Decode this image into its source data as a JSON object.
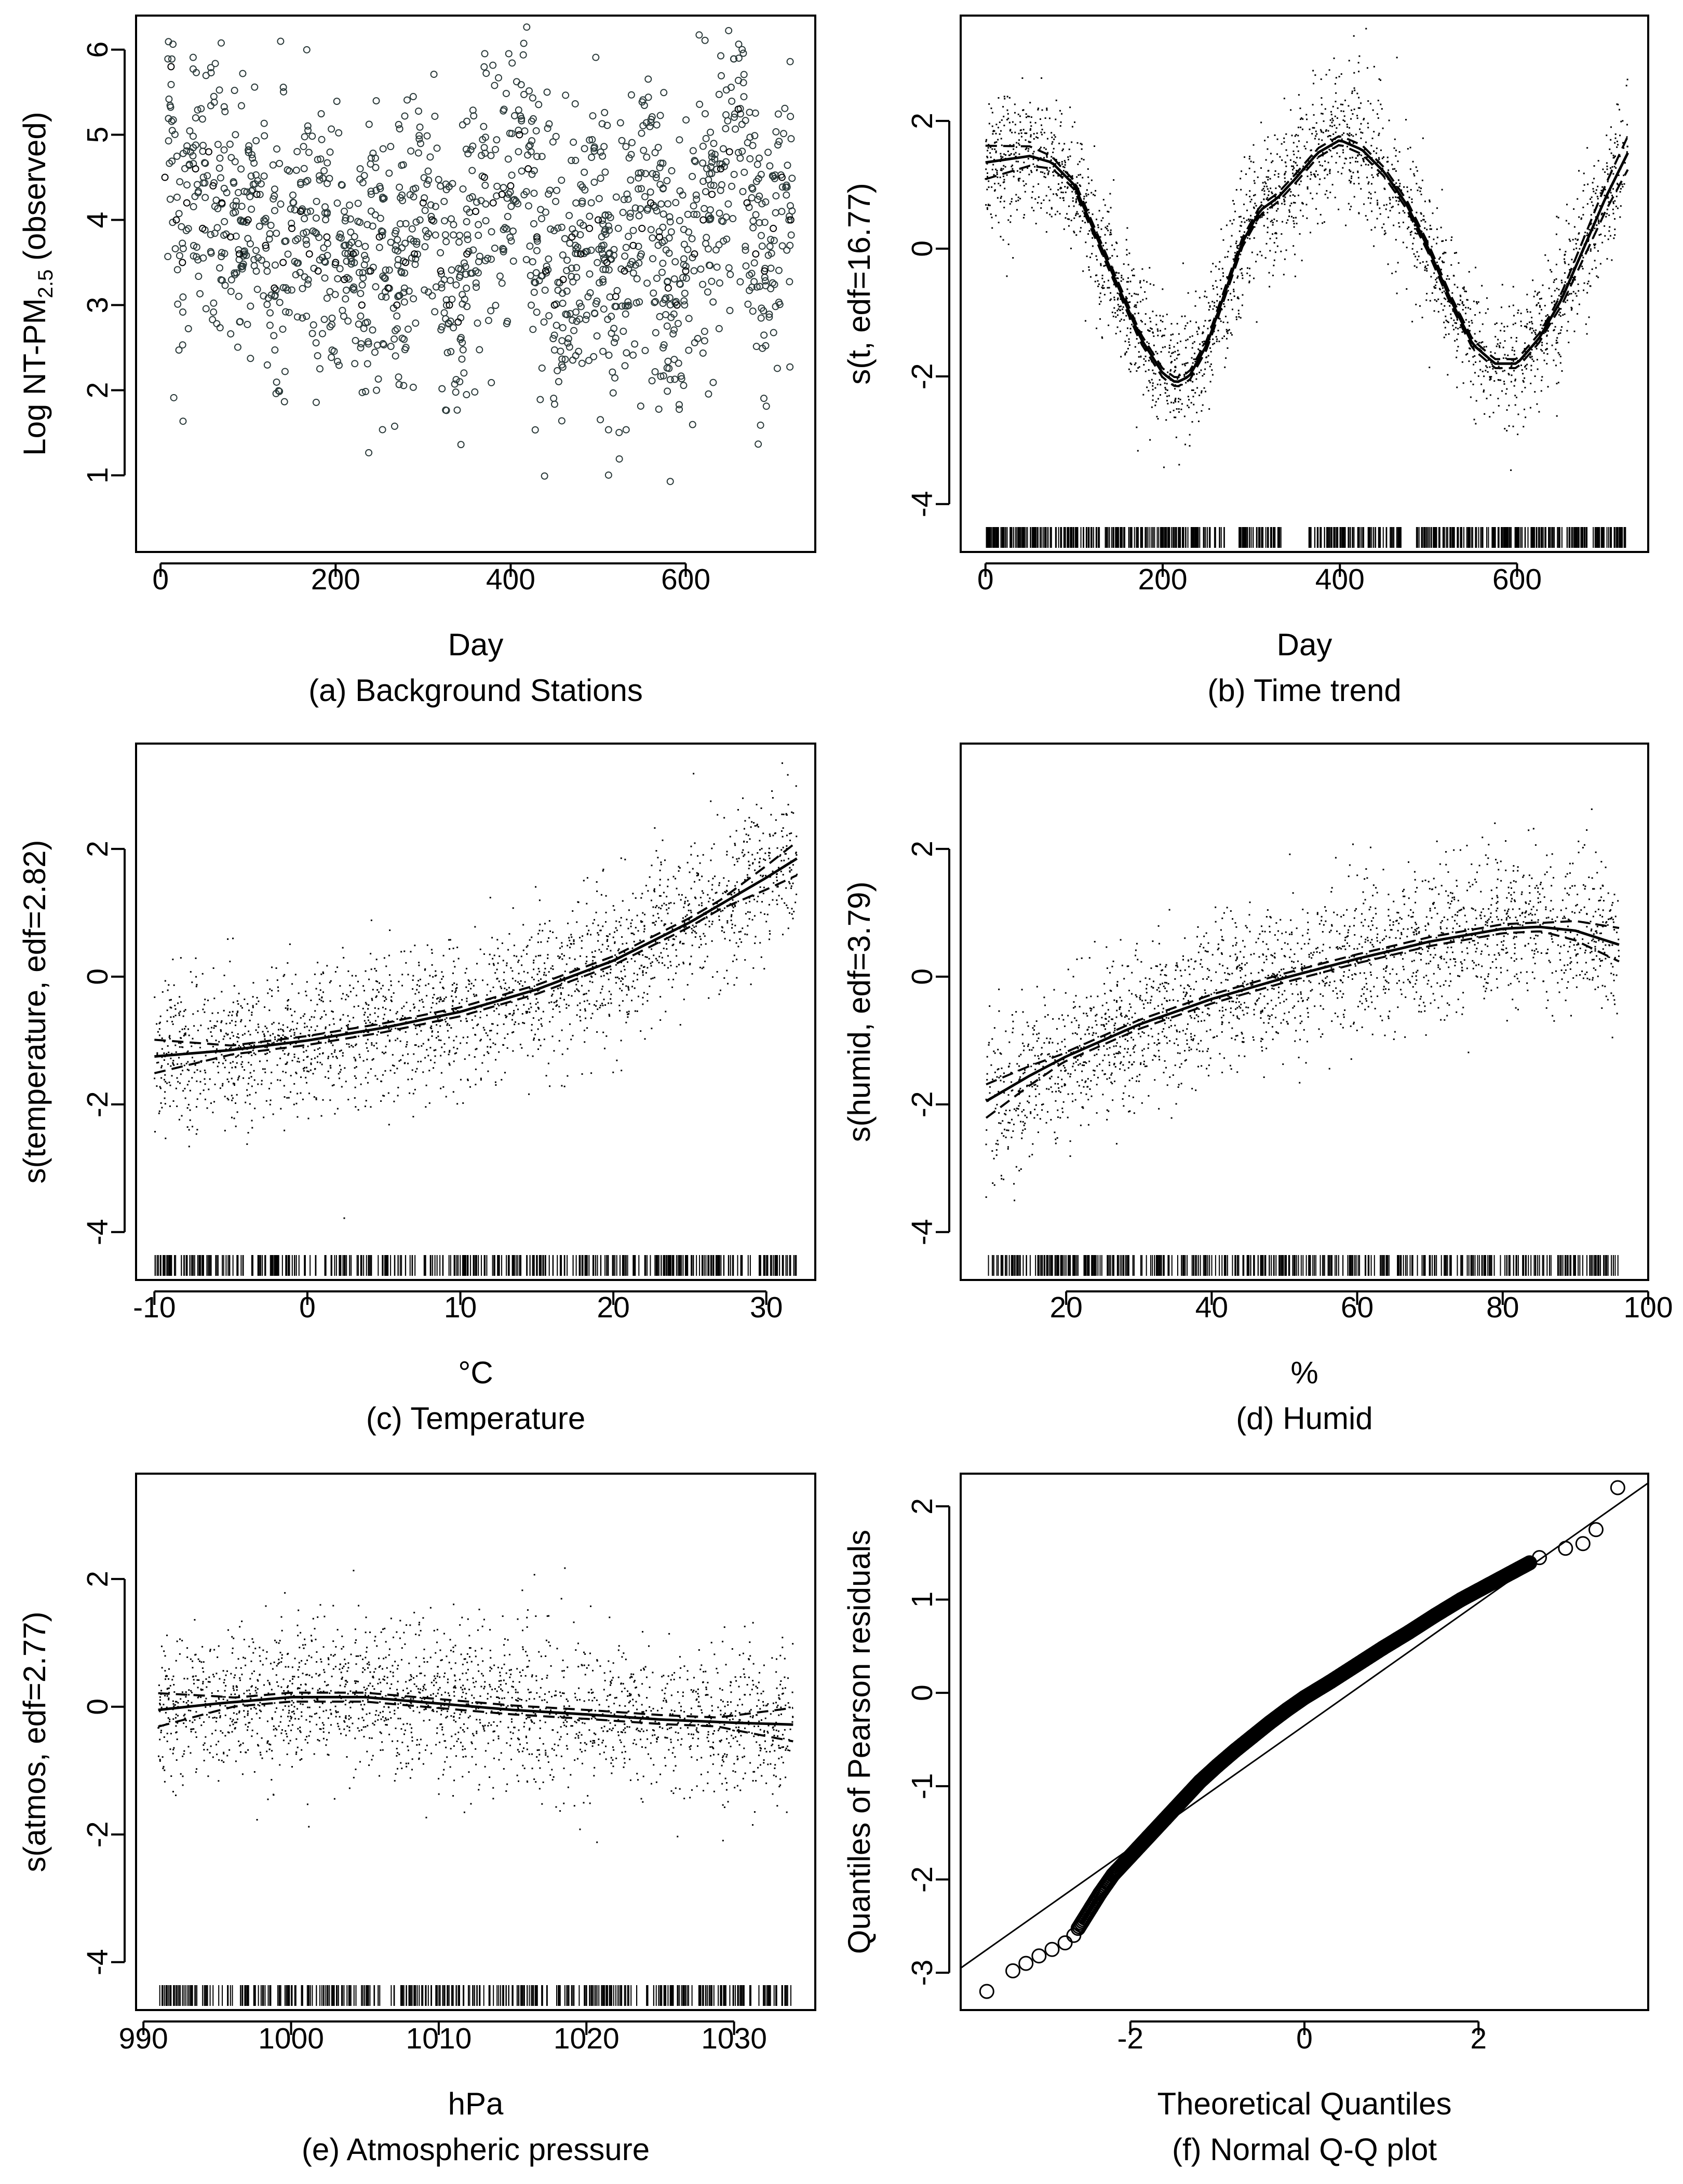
{
  "figure_title": "",
  "chart_data": [
    {
      "panel": "a",
      "type": "scatter",
      "title": "",
      "caption": "(a) Background Stations",
      "xlabel": "Day",
      "ylabel_main": "Log NT-PM",
      "ylabel_sub": "2.5",
      "ylabel_tail": " (observed)",
      "xlim": [
        -28,
        748
      ],
      "ylim": [
        0.1,
        6.4
      ],
      "xticks": [
        0,
        200,
        400,
        600
      ],
      "xtick_labels": [
        "0",
        "200",
        "400",
        "600"
      ],
      "yticks": [
        1,
        2,
        3,
        4,
        5,
        6
      ],
      "ytick_labels": [
        "1",
        "2",
        "3",
        "4",
        "5",
        "6"
      ],
      "points_style": "open-circle",
      "series": [
        {
          "name": "observed",
          "x": [
            5,
            12,
            18,
            25,
            30,
            40,
            48,
            55,
            60,
            70,
            80,
            90,
            100,
            110,
            120,
            130,
            140,
            150,
            160,
            170,
            180,
            190,
            200,
            210,
            220,
            230,
            240,
            250,
            260,
            270,
            280,
            290,
            300,
            310,
            320,
            330,
            340,
            350,
            360,
            370,
            380,
            390,
            400,
            410,
            420,
            430,
            440,
            450,
            460,
            470,
            480,
            490,
            500,
            510,
            520,
            530,
            540,
            550,
            560,
            570,
            580,
            590,
            600,
            610,
            620,
            630,
            640,
            650,
            660,
            670,
            680,
            690,
            700,
            710,
            720
          ],
          "y": [
            4.5,
            5.8,
            4.0,
            3.5,
            4.2,
            4.6,
            3.9,
            4.8,
            4.4,
            4.2,
            3.8,
            3.6,
            4.0,
            4.3,
            3.7,
            3.2,
            3.5,
            3.9,
            4.1,
            3.6,
            3.4,
            3.8,
            3.5,
            3.3,
            3.6,
            3.0,
            3.4,
            3.8,
            3.2,
            3.0,
            3.5,
            3.6,
            4.2,
            4.0,
            3.4,
            3.0,
            2.8,
            3.6,
            4.1,
            4.5,
            4.2,
            4.3,
            4.4,
            5.0,
            4.6,
            3.8,
            3.4,
            3.0,
            3.3,
            3.8,
            3.6,
            3.9,
            4.0,
            3.5,
            3.1,
            3.4,
            3.7,
            3.9,
            4.2,
            3.8,
            3.2,
            3.0,
            3.4,
            3.6,
            4.0,
            4.3,
            4.6,
            4.8,
            5.3,
            4.2,
            3.6,
            3.4,
            3.9,
            4.5,
            4.0
          ]
        }
      ]
    },
    {
      "panel": "b",
      "type": "line",
      "title": "",
      "caption": "(b) Time trend",
      "xlabel": "Day",
      "ylabel": "s(t, edf=16.77)",
      "xlim": [
        -28,
        748
      ],
      "ylim": [
        -4.75,
        3.65
      ],
      "xticks": [
        0,
        200,
        400,
        600
      ],
      "xtick_labels": [
        "0",
        "200",
        "400",
        "600"
      ],
      "yticks": [
        -4,
        -2,
        0,
        2
      ],
      "ytick_labels": [
        "-4",
        "-2",
        "0",
        "2"
      ],
      "rug": true,
      "series": [
        {
          "name": "fit",
          "x": [
            0,
            25,
            50,
            75,
            100,
            125,
            150,
            175,
            200,
            215,
            230,
            250,
            270,
            290,
            310,
            330,
            350,
            375,
            400,
            425,
            450,
            475,
            500,
            525,
            550,
            575,
            600,
            625,
            650,
            675,
            700,
            725
          ],
          "y": [
            1.35,
            1.4,
            1.45,
            1.35,
            1.0,
            0.2,
            -0.6,
            -1.4,
            -1.95,
            -2.1,
            -2.0,
            -1.5,
            -0.7,
            0.1,
            0.6,
            0.8,
            1.1,
            1.5,
            1.7,
            1.55,
            1.2,
            0.7,
            0.0,
            -0.8,
            -1.5,
            -1.8,
            -1.8,
            -1.4,
            -0.8,
            0.0,
            0.8,
            1.5
          ]
        }
      ]
    },
    {
      "panel": "c",
      "type": "line",
      "title": "",
      "caption": "(c) Temperature",
      "xlabel": "°C",
      "ylabel": "s(temperature, edf=2.82)",
      "xlim": [
        -11.2,
        33.2
      ],
      "ylim": [
        -4.75,
        3.65
      ],
      "xticks": [
        -10,
        0,
        10,
        20,
        30
      ],
      "xtick_labels": [
        "-10",
        "0",
        "10",
        "20",
        "30"
      ],
      "yticks": [
        -4,
        -2,
        0,
        2
      ],
      "ytick_labels": [
        "-4",
        "-2",
        "0",
        "2"
      ],
      "rug": true,
      "series": [
        {
          "name": "fit",
          "x": [
            -10,
            -5,
            0,
            5,
            10,
            15,
            20,
            25,
            30,
            32
          ],
          "y": [
            -1.25,
            -1.15,
            -1.0,
            -0.8,
            -0.55,
            -0.2,
            0.25,
            0.85,
            1.55,
            1.85
          ]
        }
      ]
    },
    {
      "panel": "d",
      "type": "line",
      "title": "",
      "caption": "(d) Humid",
      "xlabel": "%",
      "ylabel": "s(humid, edf=3.79)",
      "xlim": [
        5.5,
        100
      ],
      "ylim": [
        -4.75,
        3.65
      ],
      "xticks": [
        20,
        40,
        60,
        80,
        100
      ],
      "xtick_labels": [
        "20",
        "40",
        "60",
        "80",
        "100"
      ],
      "yticks": [
        -4,
        -2,
        0,
        2
      ],
      "ytick_labels": [
        "-4",
        "-2",
        "0",
        "2"
      ],
      "rug": true,
      "series": [
        {
          "name": "fit",
          "x": [
            9,
            15,
            20,
            30,
            40,
            50,
            60,
            70,
            80,
            85,
            90,
            96
          ],
          "y": [
            -1.95,
            -1.55,
            -1.25,
            -0.75,
            -0.35,
            -0.02,
            0.28,
            0.55,
            0.75,
            0.78,
            0.72,
            0.5
          ]
        }
      ]
    },
    {
      "panel": "e",
      "type": "line",
      "title": "",
      "caption": "(e) Atmospheric pressure",
      "xlabel": "hPa",
      "ylabel": "s(atmos, edf=2.77)",
      "xlim": [
        989.5,
        1035.5
      ],
      "ylim": [
        -4.75,
        3.65
      ],
      "xticks": [
        990,
        1000,
        1010,
        1020,
        1030
      ],
      "xtick_labels": [
        "990",
        "1000",
        "1010",
        "1020",
        "1030"
      ],
      "yticks": [
        -4,
        -2,
        0,
        2
      ],
      "ytick_labels": [
        "-4",
        "-2",
        "0",
        "2"
      ],
      "rug": true,
      "series": [
        {
          "name": "fit",
          "x": [
            991,
            995,
            1000,
            1005,
            1010,
            1015,
            1020,
            1025,
            1030,
            1034
          ],
          "y": [
            -0.05,
            0.05,
            0.15,
            0.15,
            0.05,
            -0.05,
            -0.12,
            -0.2,
            -0.25,
            -0.28
          ]
        }
      ]
    },
    {
      "panel": "f",
      "type": "scatter",
      "title": "",
      "caption": "(f) Normal Q-Q plot",
      "xlabel": "Theoretical Quantiles",
      "ylabel": "Quantiles of Pearson residuals",
      "xlim": [
        -3.95,
        3.95
      ],
      "ylim": [
        -3.4,
        2.35
      ],
      "xticks": [
        -2,
        0,
        2
      ],
      "xtick_labels": [
        "-2",
        "0",
        "2"
      ],
      "yticks": [
        -3,
        -2,
        -1,
        0,
        1,
        2
      ],
      "ytick_labels": [
        "-3",
        "-2",
        "-1",
        "0",
        "1",
        "2"
      ],
      "points_style": "open-circle",
      "reference_line": {
        "x": [
          -3.95,
          3.95
        ],
        "y": [
          -2.95,
          2.25
        ]
      },
      "series": [
        {
          "name": "qq",
          "x": [
            -3.65,
            -3.35,
            -3.2,
            -3.05,
            -2.9,
            -2.75,
            -2.65,
            -2.55,
            -2.45,
            -2.35,
            -2.2,
            -2.0,
            -1.8,
            -1.6,
            -1.4,
            -1.2,
            -1.0,
            -0.8,
            -0.6,
            -0.4,
            -0.2,
            0.0,
            0.3,
            0.6,
            0.9,
            1.2,
            1.5,
            1.8,
            2.1,
            2.4,
            2.7,
            3.0,
            3.2,
            3.35,
            3.6
          ],
          "y": [
            -3.2,
            -2.98,
            -2.9,
            -2.82,
            -2.75,
            -2.68,
            -2.6,
            -2.45,
            -2.3,
            -2.15,
            -1.95,
            -1.75,
            -1.55,
            -1.35,
            -1.15,
            -0.95,
            -0.78,
            -0.62,
            -0.47,
            -0.32,
            -0.18,
            -0.05,
            0.12,
            0.3,
            0.48,
            0.65,
            0.83,
            1.0,
            1.15,
            1.3,
            1.45,
            1.55,
            1.6,
            1.75,
            2.2
          ]
        }
      ]
    }
  ]
}
